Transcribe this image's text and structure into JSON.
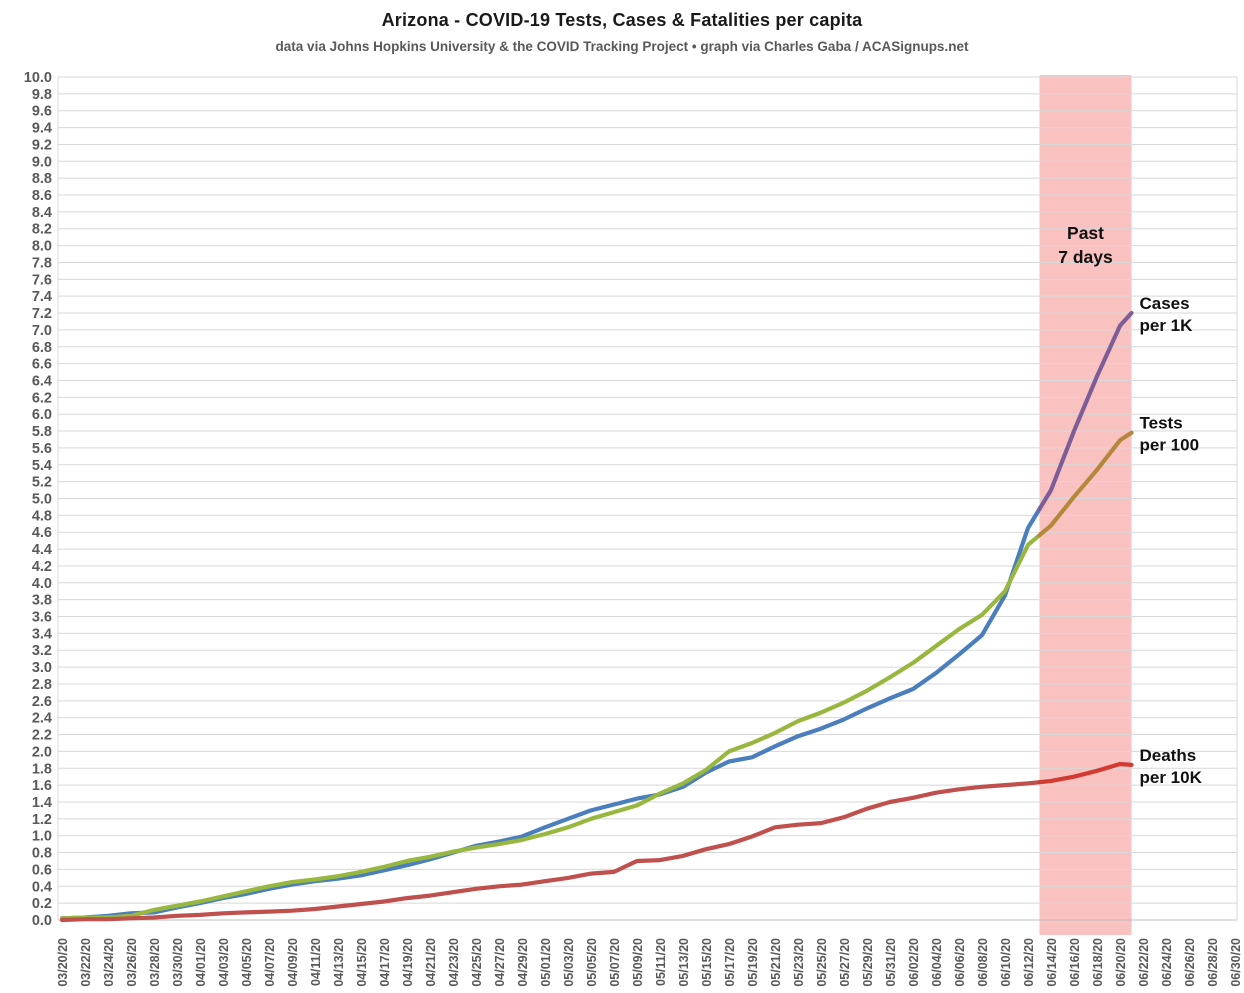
{
  "title": "Arizona - COVID-19 Tests, Cases & Fatalities per capita",
  "subtitle": "data via Johns Hopkins University & the COVID Tracking Project • graph via Charles Gaba / ACASignups.net",
  "chart_data": {
    "type": "line",
    "title": "Arizona - COVID-19 Tests, Cases & Fatalities per capita",
    "xlabel": "",
    "ylabel": "",
    "ylim": [
      0,
      10
    ],
    "y_step": 0.2,
    "grid": "horizontal",
    "legend_position": "line-end-labels",
    "y_tick_labels": [
      "0.0",
      "0.2",
      "0.4",
      "0.6",
      "0.8",
      "1.0",
      "1.2",
      "1.4",
      "1.6",
      "1.8",
      "2.0",
      "2.2",
      "2.4",
      "2.6",
      "2.8",
      "3.0",
      "3.2",
      "3.4",
      "3.6",
      "3.8",
      "4.0",
      "4.2",
      "4.4",
      "4.6",
      "4.8",
      "5.0",
      "5.2",
      "5.4",
      "5.6",
      "5.8",
      "6.0",
      "6.2",
      "6.4",
      "6.6",
      "6.8",
      "7.0",
      "7.2",
      "7.4",
      "7.6",
      "7.8",
      "8.0",
      "8.2",
      "8.4",
      "8.6",
      "8.8",
      "9.0",
      "9.2",
      "9.4",
      "9.6",
      "9.8",
      "10.0"
    ],
    "x_tick_labels": [
      "03/20/20",
      "03/22/20",
      "03/24/20",
      "03/26/20",
      "03/28/20",
      "03/30/20",
      "04/01/20",
      "04/03/20",
      "04/05/20",
      "04/07/20",
      "04/09/20",
      "04/11/20",
      "04/13/20",
      "04/15/20",
      "04/17/20",
      "04/19/20",
      "04/21/20",
      "04/23/20",
      "04/25/20",
      "04/27/20",
      "04/29/20",
      "05/01/20",
      "05/03/20",
      "05/05/20",
      "05/07/20",
      "05/09/20",
      "05/11/20",
      "05/13/20",
      "05/15/20",
      "05/17/20",
      "05/19/20",
      "05/21/20",
      "05/23/20",
      "05/25/20",
      "05/27/20",
      "05/29/20",
      "05/31/20",
      "06/02/20",
      "06/04/20",
      "06/06/20",
      "06/08/20",
      "06/10/20",
      "06/12/20",
      "06/14/20",
      "06/16/20",
      "06/18/20",
      "06/20/20",
      "06/22/20",
      "06/24/20",
      "06/26/20",
      "06/28/20",
      "06/30/20"
    ],
    "x_tick_day_span": 2,
    "x_axis_total_days": 102,
    "x_days": [
      0,
      2,
      4,
      6,
      8,
      10,
      12,
      14,
      16,
      18,
      20,
      22,
      24,
      26,
      28,
      30,
      32,
      34,
      36,
      38,
      40,
      42,
      44,
      46,
      48,
      50,
      52,
      54,
      56,
      58,
      60,
      62,
      64,
      66,
      68,
      70,
      72,
      74,
      76,
      78,
      80,
      82,
      84,
      86,
      88,
      90,
      92,
      93
    ],
    "series": [
      {
        "id": "cases",
        "name": "Cases per 1K",
        "label_lines": [
          "Cases",
          "per 1K"
        ],
        "color": "#4A7EBD",
        "recent_color": "#7E5D96",
        "values": [
          0.02,
          0.03,
          0.05,
          0.08,
          0.09,
          0.15,
          0.2,
          0.26,
          0.31,
          0.37,
          0.42,
          0.46,
          0.49,
          0.53,
          0.59,
          0.65,
          0.72,
          0.8,
          0.88,
          0.93,
          0.99,
          1.1,
          1.2,
          1.3,
          1.37,
          1.44,
          1.49,
          1.58,
          1.75,
          1.88,
          1.93,
          2.06,
          2.18,
          2.27,
          2.38,
          2.51,
          2.63,
          2.74,
          2.93,
          3.15,
          3.38,
          3.85,
          4.65,
          5.1,
          5.8,
          6.45,
          7.05,
          7.2
        ]
      },
      {
        "id": "tests",
        "name": "Tests per 100",
        "label_lines": [
          "Tests",
          "per 100"
        ],
        "color": "#97B73F",
        "recent_color": "#B5873B",
        "values": [
          0.02,
          0.03,
          0.03,
          0.05,
          0.12,
          0.17,
          0.22,
          0.28,
          0.34,
          0.4,
          0.45,
          0.48,
          0.52,
          0.57,
          0.63,
          0.7,
          0.75,
          0.81,
          0.86,
          0.9,
          0.95,
          1.02,
          1.1,
          1.2,
          1.28,
          1.36,
          1.5,
          1.62,
          1.78,
          2.0,
          2.1,
          2.22,
          2.36,
          2.46,
          2.58,
          2.72,
          2.88,
          3.05,
          3.25,
          3.45,
          3.62,
          3.9,
          4.45,
          4.68,
          5.02,
          5.34,
          5.69,
          5.78
        ]
      },
      {
        "id": "deaths",
        "name": "Deaths per 10K",
        "label_lines": [
          "Deaths",
          "per 10K"
        ],
        "color": "#C0504D",
        "recent_color": "#D23B31",
        "values": [
          0.0,
          0.01,
          0.01,
          0.02,
          0.03,
          0.05,
          0.06,
          0.08,
          0.09,
          0.1,
          0.11,
          0.13,
          0.16,
          0.19,
          0.22,
          0.26,
          0.29,
          0.33,
          0.37,
          0.4,
          0.42,
          0.46,
          0.5,
          0.55,
          0.57,
          0.7,
          0.71,
          0.76,
          0.84,
          0.9,
          0.99,
          1.1,
          1.13,
          1.15,
          1.22,
          1.32,
          1.4,
          1.45,
          1.51,
          1.55,
          1.58,
          1.6,
          1.62,
          1.65,
          1.7,
          1.77,
          1.85,
          1.84
        ]
      }
    ],
    "highlight": {
      "label_lines": [
        "Past",
        "7 days"
      ],
      "start_day": 85,
      "end_day": 93,
      "color": "#F47C7C",
      "opacity": 0.47
    },
    "colors": {
      "gridline": "#D8D8D8",
      "axis_text": "#595959",
      "annotation_text": "#111111"
    }
  }
}
